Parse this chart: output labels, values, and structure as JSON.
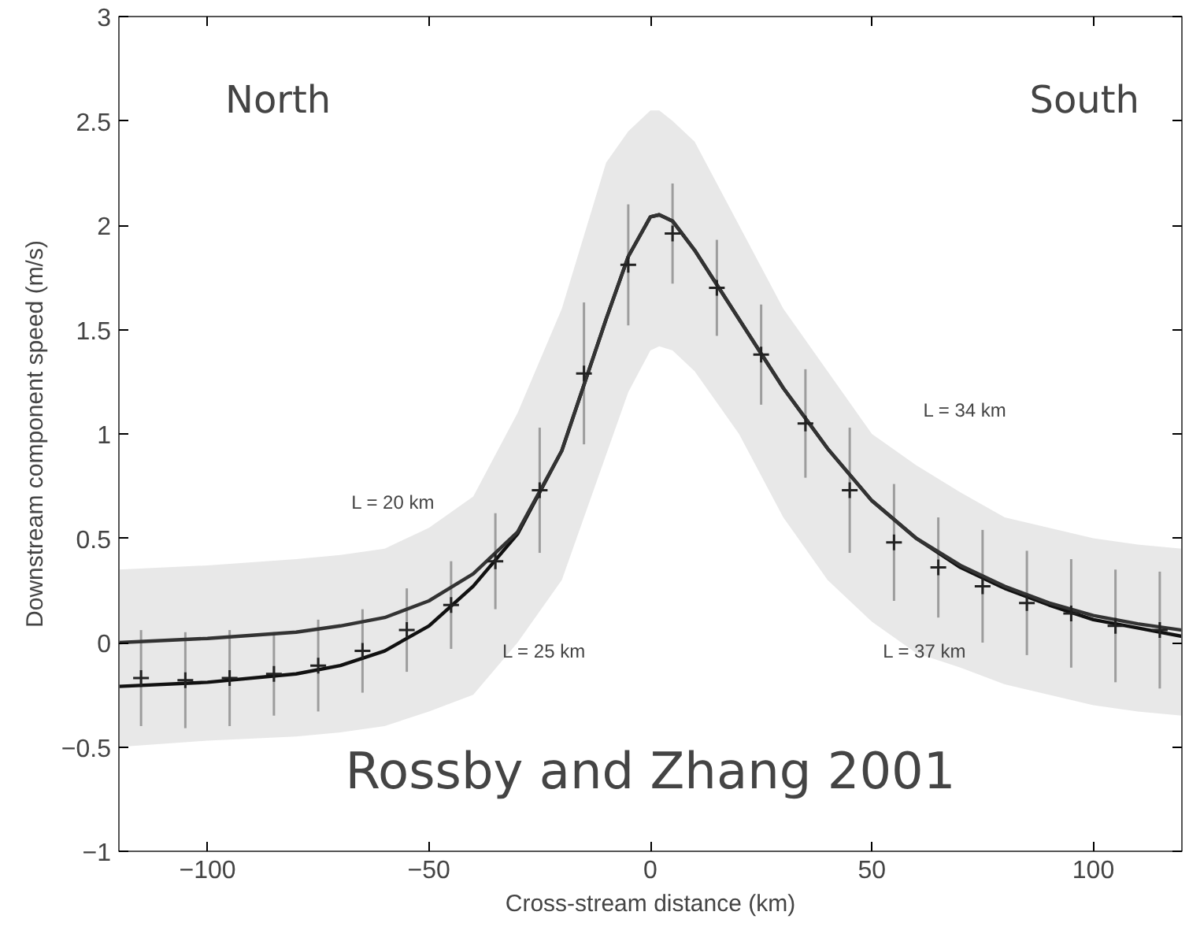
{
  "chart_data": {
    "type": "line",
    "xlabel": "Cross-stream distance (km)",
    "ylabel": "Downstream component speed (m/s)",
    "xlim": [
      -120,
      120
    ],
    "ylim": [
      -1,
      3
    ],
    "xticks": [
      -100,
      -50,
      0,
      50,
      100
    ],
    "yticks": [
      -1,
      -0.5,
      0,
      0.5,
      1,
      1.5,
      2,
      2.5,
      3
    ],
    "grid": false,
    "series": [
      {
        "color": "#111111",
        "x": [
          -120,
          -100,
          -80,
          -70,
          -60,
          -50,
          -40,
          -30,
          -20,
          -10,
          -5,
          0,
          2,
          5,
          10,
          20,
          30,
          40,
          50,
          60,
          70,
          80,
          90,
          100,
          110,
          120
        ],
        "values": [
          -0.21,
          -0.19,
          -0.15,
          -0.11,
          -0.04,
          0.08,
          0.27,
          0.52,
          0.92,
          1.55,
          1.85,
          2.04,
          2.05,
          2.02,
          1.88,
          1.55,
          1.22,
          0.93,
          0.68,
          0.5,
          0.36,
          0.26,
          0.18,
          0.11,
          0.07,
          0.03
        ],
        "lower": [
          -0.5,
          -0.47,
          -0.45,
          -0.43,
          -0.4,
          -0.33,
          -0.25,
          0.0,
          0.3,
          0.9,
          1.2,
          1.4,
          1.42,
          1.4,
          1.3,
          1.0,
          0.6,
          0.3,
          0.1,
          -0.05,
          -0.12,
          -0.2,
          -0.25,
          -0.3,
          -0.33,
          -0.35
        ],
        "upper": [
          0.35,
          0.37,
          0.4,
          0.42,
          0.45,
          0.55,
          0.7,
          1.1,
          1.6,
          2.3,
          2.45,
          2.55,
          2.55,
          2.5,
          2.4,
          2.0,
          1.6,
          1.3,
          1.0,
          0.85,
          0.72,
          0.6,
          0.55,
          0.5,
          0.47,
          0.45
        ]
      },
      {
        "color": "#333333",
        "x": [
          -120,
          -100,
          -80,
          -70,
          -60,
          -50,
          -40,
          -30,
          -20,
          -10,
          -5,
          0,
          2,
          5,
          10,
          20,
          30,
          40,
          50,
          60,
          70,
          80,
          90,
          100,
          110,
          120
        ],
        "values": [
          0.0,
          0.02,
          0.05,
          0.08,
          0.12,
          0.2,
          0.33,
          0.53,
          0.92,
          1.55,
          1.85,
          2.04,
          2.05,
          2.02,
          1.88,
          1.55,
          1.22,
          0.93,
          0.68,
          0.5,
          0.37,
          0.27,
          0.19,
          0.13,
          0.09,
          0.06
        ]
      },
      {
        "type": "scatter",
        "marker": "cross",
        "color": "#222222",
        "x": [
          -115,
          -105,
          -95,
          -85,
          -75,
          -65,
          -55,
          -45,
          -35,
          -25,
          -15,
          -5,
          5,
          15,
          25,
          35,
          45,
          55,
          65,
          75,
          85,
          95,
          105,
          115
        ],
        "values": [
          -0.17,
          -0.18,
          -0.17,
          -0.15,
          -0.11,
          -0.04,
          0.06,
          0.18,
          0.39,
          0.73,
          1.29,
          1.81,
          1.96,
          1.7,
          1.38,
          1.05,
          0.73,
          0.48,
          0.36,
          0.27,
          0.19,
          0.14,
          0.08,
          0.06
        ],
        "errors": [
          0.23,
          0.23,
          0.23,
          0.2,
          0.22,
          0.2,
          0.2,
          0.21,
          0.23,
          0.3,
          0.34,
          0.29,
          0.24,
          0.23,
          0.24,
          0.26,
          0.3,
          0.28,
          0.24,
          0.27,
          0.25,
          0.26,
          0.27,
          0.28
        ]
      }
    ],
    "annotations": [
      "North",
      "South",
      "Rossby and Zhang 2001",
      "L = 20 km",
      "L = 25 km",
      "L = 34 km",
      "L = 37 km"
    ]
  }
}
